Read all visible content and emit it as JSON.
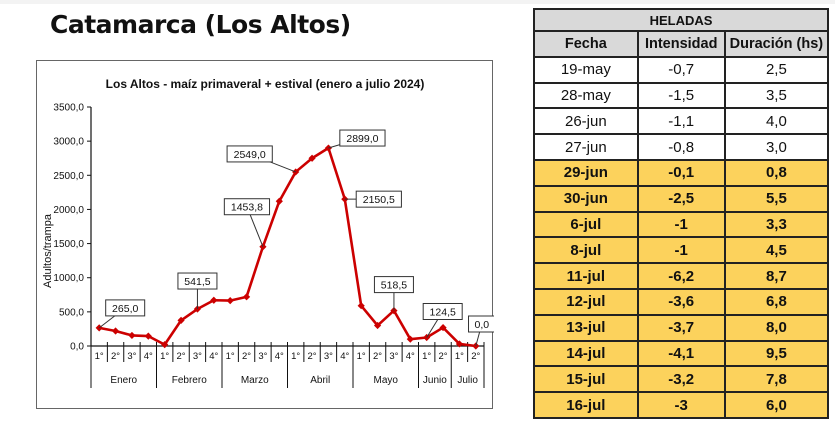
{
  "page": {
    "title": "Catamarca (Los Altos)"
  },
  "chart_data": {
    "type": "line",
    "title": "Los Altos  - maíz primaveral + estival (enero a julio 2024)",
    "xlabel": "",
    "ylabel": "Adultos/trampa",
    "ylim": [
      0,
      3500
    ],
    "yticks": [
      "0,0",
      "500,0",
      "1000,0",
      "1500,0",
      "2000,0",
      "2500,0",
      "3000,0",
      "3500,0"
    ],
    "grid": false,
    "legend": null,
    "line_color": "#cc0000",
    "months": [
      {
        "label": "Enero",
        "weeks": 4
      },
      {
        "label": "Febrero",
        "weeks": 4
      },
      {
        "label": "Marzo",
        "weeks": 4
      },
      {
        "label": "Abril",
        "weeks": 4
      },
      {
        "label": "Mayo",
        "weeks": 4
      },
      {
        "label": "Junio",
        "weeks": 2
      },
      {
        "label": "Julio",
        "weeks": 2
      }
    ],
    "categories": [
      "1°",
      "2°",
      "3°",
      "4°",
      "1°",
      "2°",
      "3°",
      "4°",
      "1°",
      "2°",
      "3°",
      "4°",
      "1°",
      "2°",
      "3°",
      "4°",
      "1°",
      "2°",
      "3°",
      "4°",
      "1°",
      "2°",
      "1°",
      "2°"
    ],
    "category_months": [
      "Enero",
      "Enero",
      "Enero",
      "Enero",
      "Febrero",
      "Febrero",
      "Febrero",
      "Febrero",
      "Marzo",
      "Marzo",
      "Marzo",
      "Marzo",
      "Abril",
      "Abril",
      "Abril",
      "Abril",
      "Mayo",
      "Mayo",
      "Mayo",
      "Mayo",
      "Junio",
      "Junio",
      "Julio",
      "Julio"
    ],
    "series": [
      {
        "name": "Adultos/trampa",
        "values": [
          265.0,
          220,
          155,
          145,
          20,
          375,
          541.5,
          670,
          665,
          720,
          1453.8,
          2120,
          2549.0,
          2750,
          2899.0,
          2150.5,
          590,
          300,
          518.5,
          100,
          124.5,
          270,
          30,
          0.0
        ]
      }
    ],
    "annotations": [
      {
        "index": 0,
        "label": "265,0"
      },
      {
        "index": 6,
        "label": "541,5"
      },
      {
        "index": 10,
        "label": "1453,8"
      },
      {
        "index": 12,
        "label": "2549,0"
      },
      {
        "index": 14,
        "label": "2899,0"
      },
      {
        "index": 15,
        "label": "2150,5"
      },
      {
        "index": 18,
        "label": "518,5"
      },
      {
        "index": 20,
        "label": "124,5"
      },
      {
        "index": 23,
        "label": "0,0"
      }
    ]
  },
  "table": {
    "title": "HELADAS",
    "headers": [
      "Fecha",
      "Intensidad",
      "Duración (hs)"
    ],
    "highlight_color": "#fcd25c",
    "rows": [
      {
        "fecha": "19-may",
        "intensidad": "-0,7",
        "duracion": "2,5",
        "highlight": false
      },
      {
        "fecha": "28-may",
        "intensidad": "-1,5",
        "duracion": "3,5",
        "highlight": false
      },
      {
        "fecha": "26-jun",
        "intensidad": "-1,1",
        "duracion": "4,0",
        "highlight": false
      },
      {
        "fecha": "27-jun",
        "intensidad": "-0,8",
        "duracion": "3,0",
        "highlight": false
      },
      {
        "fecha": "29-jun",
        "intensidad": "-0,1",
        "duracion": "0,8",
        "highlight": true
      },
      {
        "fecha": "30-jun",
        "intensidad": "-2,5",
        "duracion": "5,5",
        "highlight": true
      },
      {
        "fecha": "6-jul",
        "intensidad": "-1",
        "duracion": "3,3",
        "highlight": true
      },
      {
        "fecha": "8-jul",
        "intensidad": "-1",
        "duracion": "4,5",
        "highlight": true
      },
      {
        "fecha": "11-jul",
        "intensidad": "-6,2",
        "duracion": "8,7",
        "highlight": true
      },
      {
        "fecha": "12-jul",
        "intensidad": "-3,6",
        "duracion": "6,8",
        "highlight": true
      },
      {
        "fecha": "13-jul",
        "intensidad": "-3,7",
        "duracion": "8,0",
        "highlight": true
      },
      {
        "fecha": "14-jul",
        "intensidad": "-4,1",
        "duracion": "9,5",
        "highlight": true
      },
      {
        "fecha": "15-jul",
        "intensidad": "-3,2",
        "duracion": "7,8",
        "highlight": true
      },
      {
        "fecha": "16-jul",
        "intensidad": "-3",
        "duracion": "6,0",
        "highlight": true
      }
    ]
  }
}
